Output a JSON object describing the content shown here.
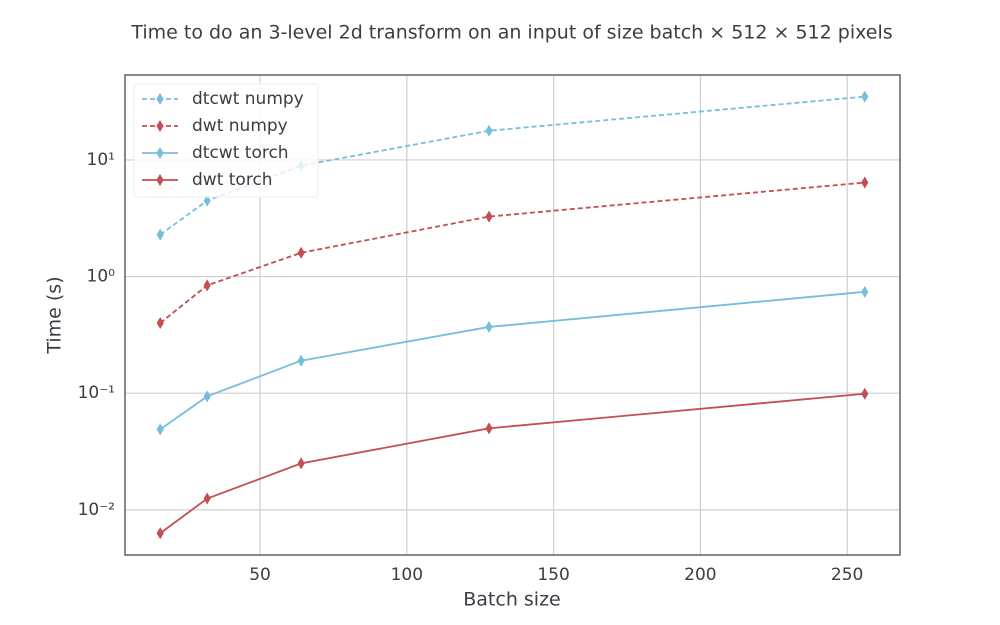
{
  "chart_data": {
    "type": "line",
    "title": "Time to do an 3-level 2d transform on an input of size batch × 512 × 512 pixels",
    "xlabel": "Batch size",
    "ylabel": "Time (s)",
    "x": [
      16,
      32,
      64,
      128,
      256
    ],
    "series": [
      {
        "name": "dtcwt numpy",
        "color": "#77bedb",
        "linestyle": "dashed",
        "values": [
          2.29,
          4.48,
          8.93,
          17.8,
          34.9
        ]
      },
      {
        "name": "dwt numpy",
        "color": "#c44e52",
        "linestyle": "dashed",
        "values": [
          0.4,
          0.84,
          1.6,
          3.27,
          6.4
        ]
      },
      {
        "name": "dtcwt torch",
        "color": "#77bedb",
        "linestyle": "solid",
        "values": [
          0.049,
          0.094,
          0.19,
          0.37,
          0.74
        ]
      },
      {
        "name": "dwt torch",
        "color": "#c44e52",
        "linestyle": "solid",
        "values": [
          0.0063,
          0.0125,
          0.025,
          0.05,
          0.099
        ]
      }
    ],
    "marker": "diamond",
    "xlim": [
      4,
      268
    ],
    "xticks": [
      50,
      100,
      150,
      200,
      250
    ],
    "ylim": [
      0.0041,
      53.5
    ],
    "yscale": "log",
    "yticks": [
      {
        "value": 0.01,
        "label": "10⁻²"
      },
      {
        "value": 0.1,
        "label": "10⁻¹"
      },
      {
        "value": 1,
        "label": "10⁰"
      },
      {
        "value": 10,
        "label": "10¹"
      }
    ],
    "grid": true,
    "legend": "upper left"
  }
}
